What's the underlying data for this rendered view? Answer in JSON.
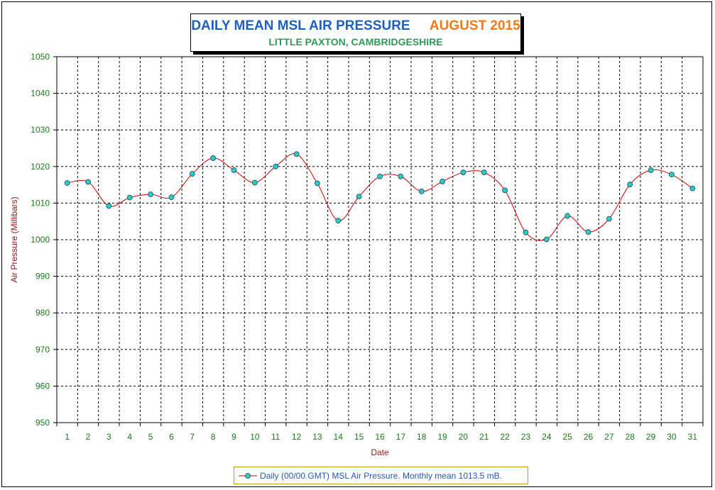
{
  "title": {
    "main": "DAILY MEAN MSL AIR PRESSURE",
    "month": "AUGUST 2015",
    "subtitle": "LITTLE PAXTON, CAMBRIDGESHIRE"
  },
  "colors": {
    "title_main": "#1f5fbf",
    "title_month": "#ee7a1b",
    "subtitle": "#2e9a5a",
    "tick_labels": "#1a7a1a",
    "axis_titles": "#8b1a1a",
    "line": "#cc0000",
    "marker_fill": "#2ec9c9",
    "legend_text": "#2b55b5",
    "legend_border": "#c8a000"
  },
  "chart_data": {
    "type": "line",
    "title": "DAILY MEAN MSL AIR PRESSURE AUGUST 2015",
    "subtitle": "LITTLE PAXTON, CAMBRIDGESHIRE",
    "xlabel": "Date",
    "ylabel": "Air Pressure (Millibars)",
    "ylim": [
      950,
      1050
    ],
    "yticks": [
      950,
      960,
      970,
      980,
      990,
      1000,
      1010,
      1020,
      1030,
      1040,
      1050
    ],
    "x": [
      1,
      2,
      3,
      4,
      5,
      6,
      7,
      8,
      9,
      10,
      11,
      12,
      13,
      14,
      15,
      16,
      17,
      18,
      19,
      20,
      21,
      22,
      23,
      24,
      25,
      26,
      27,
      28,
      29,
      30,
      31
    ],
    "grid": true,
    "legend_position": "bottom-center",
    "series": [
      {
        "name": "Daily (00/00 GMT) MSL Air Pressure. Monthly mean 1013.5 mB.",
        "values": [
          1015.5,
          1015.8,
          1009.2,
          1011.5,
          1012.4,
          1011.6,
          1018.0,
          1022.3,
          1019.0,
          1015.6,
          1020.0,
          1023.4,
          1015.4,
          1005.2,
          1011.8,
          1017.3,
          1017.3,
          1013.2,
          1015.9,
          1018.4,
          1018.4,
          1013.5,
          1002.0,
          1000.1,
          1006.5,
          1002.1,
          1005.7,
          1015.1,
          1019.0,
          1017.8,
          1014.0
        ]
      }
    ]
  },
  "legend": {
    "label": "Daily (00/00 GMT) MSL Air Pressure. Monthly mean 1013.5 mB."
  }
}
